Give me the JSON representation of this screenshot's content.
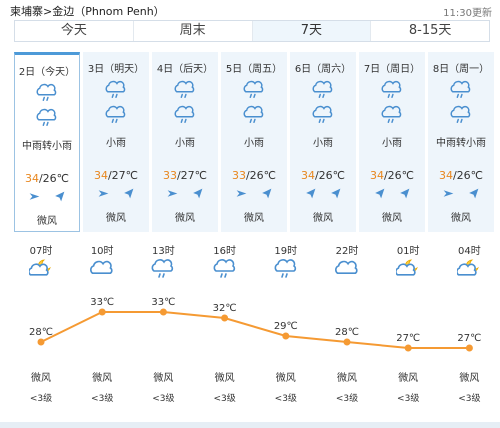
{
  "header": {
    "breadcrumb": "柬埔寨>金边（Phnom Penh）",
    "updated": "11:30更新"
  },
  "tabs": [
    "今天",
    "周末",
    "7天",
    "8-15天"
  ],
  "active_tab_index": 2,
  "days": [
    {
      "date": "2日（今天）",
      "weather": "中雨转小雨",
      "high": "34",
      "low": "/26℃",
      "wind": "微风",
      "icons": [
        "rain-icon",
        "rain-icon"
      ],
      "wind_icons": [
        "wind-east-icon",
        "wind-northeast-icon"
      ],
      "selected": true
    },
    {
      "date": "3日（明天）",
      "weather": "小雨",
      "high": "34",
      "low": "/27℃",
      "wind": "微风",
      "icons": [
        "rain-icon",
        "rain-icon"
      ],
      "wind_icons": [
        "wind-east-icon",
        "wind-northeast-icon"
      ]
    },
    {
      "date": "4日（后天）",
      "weather": "小雨",
      "high": "33",
      "low": "/27℃",
      "wind": "微风",
      "icons": [
        "rain-icon",
        "rain-icon"
      ],
      "wind_icons": [
        "wind-east-icon",
        "wind-northeast-icon"
      ]
    },
    {
      "date": "5日（周五）",
      "weather": "小雨",
      "high": "33",
      "low": "/26℃",
      "wind": "微风",
      "icons": [
        "rain-icon",
        "rain-icon"
      ],
      "wind_icons": [
        "wind-east-icon",
        "wind-northeast-icon"
      ]
    },
    {
      "date": "6日（周六）",
      "weather": "小雨",
      "high": "34",
      "low": "/26℃",
      "wind": "微风",
      "icons": [
        "rain-icon",
        "rain-icon"
      ],
      "wind_icons": [
        "wind-northeast-icon",
        "wind-northeast-icon"
      ]
    },
    {
      "date": "7日（周日）",
      "weather": "小雨",
      "high": "34",
      "low": "/26℃",
      "wind": "微风",
      "icons": [
        "rain-icon",
        "rain-icon"
      ],
      "wind_icons": [
        "wind-northeast-icon",
        "wind-northeast-icon"
      ]
    },
    {
      "date": "8日（周一）",
      "weather": "中雨转小雨",
      "high": "34",
      "low": "/26℃",
      "wind": "微风",
      "icons": [
        "rain-icon",
        "rain-icon"
      ],
      "wind_icons": [
        "wind-east-icon",
        "wind-northeast-icon"
      ]
    }
  ],
  "hourly": [
    {
      "time": "07时",
      "icon": "night-cloudy-icon",
      "wind": "微风",
      "level": "<3级"
    },
    {
      "time": "10时",
      "icon": "cloudy-icon",
      "wind": "微风",
      "level": "<3级"
    },
    {
      "time": "13时",
      "icon": "rain-icon",
      "wind": "微风",
      "level": "<3级"
    },
    {
      "time": "16时",
      "icon": "rain-icon",
      "wind": "微风",
      "level": "<3级"
    },
    {
      "time": "19时",
      "icon": "rain-icon",
      "wind": "微风",
      "level": "<3级"
    },
    {
      "time": "22时",
      "icon": "cloudy-icon",
      "wind": "微风",
      "level": "<3级"
    },
    {
      "time": "01时",
      "icon": "night-cloudy-icon",
      "wind": "微风",
      "level": "<3级"
    },
    {
      "time": "04时",
      "icon": "night-cloudy-icon",
      "wind": "微风",
      "level": "<3级"
    }
  ],
  "chart_data": {
    "type": "line",
    "categories": [
      "07时",
      "10时",
      "13时",
      "16时",
      "19时",
      "22时",
      "01时",
      "04时"
    ],
    "values": [
      28,
      33,
      33,
      32,
      29,
      28,
      27,
      27
    ],
    "unit": "℃",
    "title": "",
    "xlabel": "",
    "ylabel": "",
    "color": "#f59a33"
  }
}
